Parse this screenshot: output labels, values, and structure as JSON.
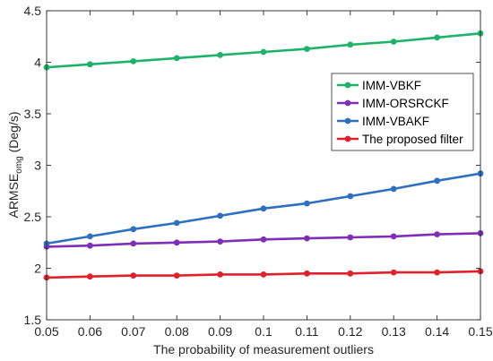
{
  "chart_data": {
    "type": "line",
    "title": "",
    "xlabel": "The probability of measurement outliers",
    "ylabel": {
      "main": "ARMSE",
      "sub": "omg",
      "unit": " (Deg/s)"
    },
    "xlim": [
      0.05,
      0.15
    ],
    "ylim": [
      1.5,
      4.5
    ],
    "xticks": [
      "0.05",
      "0.06",
      "0.07",
      "0.08",
      "0.09",
      "0.1",
      "0.11",
      "0.12",
      "0.13",
      "0.14",
      "0.15"
    ],
    "yticks": [
      "1.5",
      "2",
      "2.5",
      "3",
      "3.5",
      "4",
      "4.5"
    ],
    "x": [
      0.05,
      0.06,
      0.07,
      0.08,
      0.09,
      0.1,
      0.11,
      0.12,
      0.13,
      0.14,
      0.15
    ],
    "grid": false,
    "legend_position": "right",
    "series": [
      {
        "name": "IMM-VBKF",
        "color": "#1db36a",
        "values": [
          3.95,
          3.98,
          4.01,
          4.04,
          4.07,
          4.1,
          4.13,
          4.17,
          4.2,
          4.24,
          4.28
        ]
      },
      {
        "name": "IMM-ORSRCKF",
        "color": "#7e2fb8",
        "values": [
          2.21,
          2.22,
          2.24,
          2.25,
          2.26,
          2.28,
          2.29,
          2.3,
          2.31,
          2.33,
          2.34
        ]
      },
      {
        "name": "IMM-VBAKF",
        "color": "#2e6fc0",
        "values": [
          2.24,
          2.31,
          2.38,
          2.44,
          2.51,
          2.58,
          2.63,
          2.7,
          2.77,
          2.85,
          2.92
        ]
      },
      {
        "name": "The proposed filter",
        "color": "#e0202b",
        "values": [
          1.91,
          1.92,
          1.93,
          1.93,
          1.94,
          1.94,
          1.95,
          1.95,
          1.96,
          1.96,
          1.97
        ]
      }
    ]
  }
}
